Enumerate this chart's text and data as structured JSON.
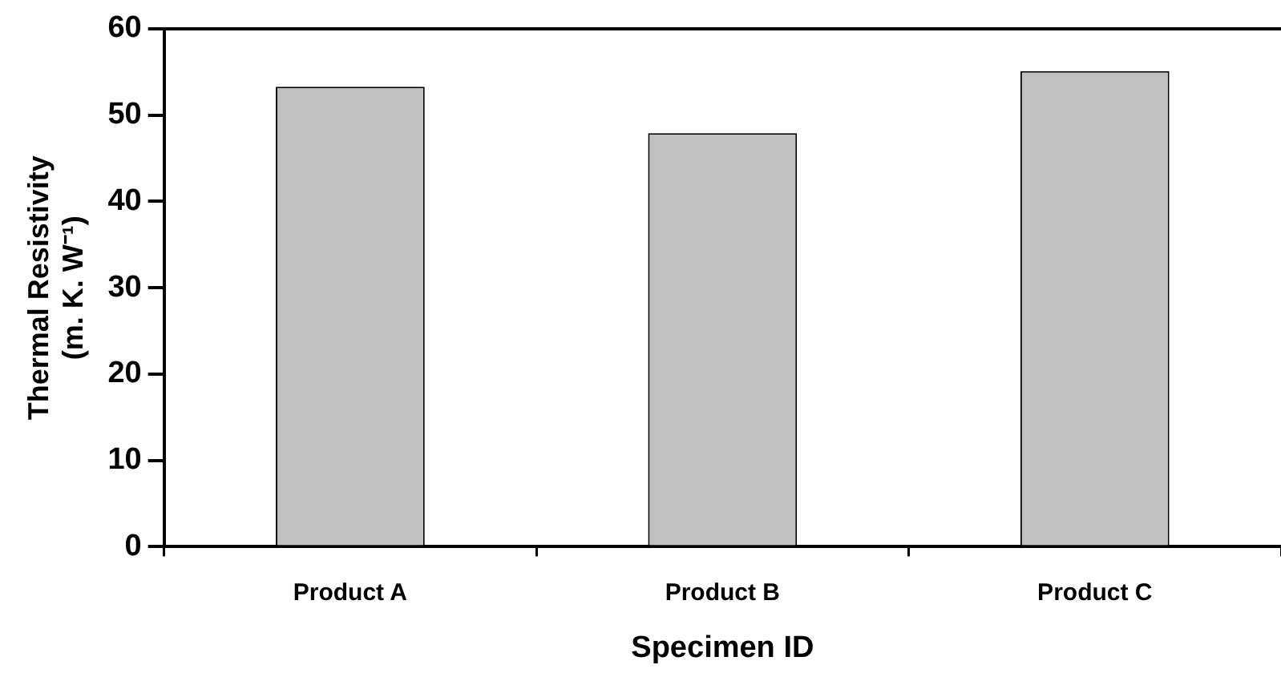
{
  "chart_data": {
    "type": "bar",
    "xlabel": "Specimen ID",
    "ylabel": "Thermal Resistivity\n(m. K. W⁻¹)",
    "categories": [
      "Product A",
      "Product B",
      "Product C"
    ],
    "values": [
      53.3,
      47.9,
      55.1
    ],
    "color": "#c0c0c0",
    "ylim": [
      0,
      60
    ],
    "yticks": [
      0,
      10,
      20,
      30,
      40,
      50,
      60
    ],
    "grid": false,
    "legend": false
  }
}
